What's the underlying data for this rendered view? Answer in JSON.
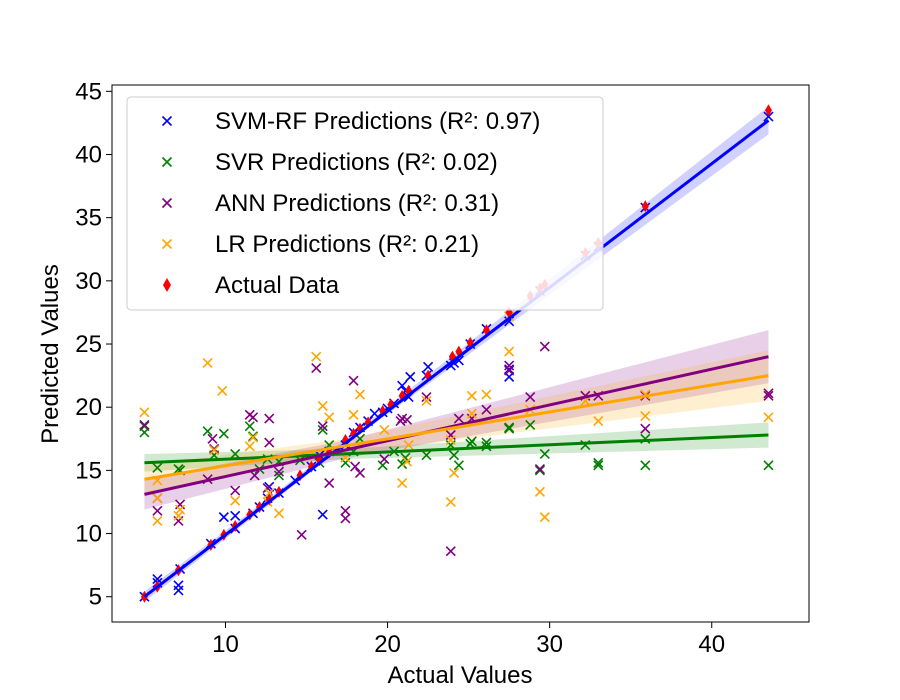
{
  "chart_data": {
    "type": "scatter",
    "title": "",
    "xlabel": "Actual Values",
    "ylabel": "Predicted Values",
    "xlim": [
      3,
      46
    ],
    "ylim": [
      3,
      45.5
    ],
    "xticks": [
      10,
      20,
      30,
      40
    ],
    "yticks": [
      5,
      10,
      15,
      20,
      25,
      30,
      35,
      40,
      45
    ],
    "grid": false,
    "legend_position": "top-left",
    "series": [
      {
        "name": "SVM-RF Predictions (R²: 0.97)",
        "marker": "x",
        "color": "#0000ff",
        "points": [
          [
            5,
            5
          ],
          [
            5.8,
            6.4
          ],
          [
            5.8,
            6.1
          ],
          [
            7.1,
            5.5
          ],
          [
            7.1,
            5.9
          ],
          [
            7.2,
            7.2
          ],
          [
            9.1,
            9.2
          ],
          [
            9.9,
            11.3
          ],
          [
            10.6,
            10.4
          ],
          [
            10.6,
            11.4
          ],
          [
            11.7,
            11.6
          ],
          [
            12.1,
            12.1
          ],
          [
            12.6,
            12.8
          ],
          [
            12.7,
            13.7
          ],
          [
            13.3,
            13.2
          ],
          [
            14.3,
            14.2
          ],
          [
            15.3,
            15.3
          ],
          [
            15.8,
            16.2
          ],
          [
            16.0,
            11.5
          ],
          [
            16.4,
            16.5
          ],
          [
            17.4,
            17.0
          ],
          [
            17.9,
            18.0
          ],
          [
            18.3,
            18.4
          ],
          [
            18.8,
            18.9
          ],
          [
            19.2,
            19.5
          ],
          [
            19.7,
            19.6
          ],
          [
            20.0,
            19.9
          ],
          [
            20.4,
            20.3
          ],
          [
            20.9,
            21.7
          ],
          [
            21.1,
            21.3
          ],
          [
            21.3,
            20.8
          ],
          [
            21.4,
            22.4
          ],
          [
            22.5,
            23.2
          ],
          [
            22.4,
            22.5
          ],
          [
            23.9,
            23.3
          ],
          [
            24.1,
            23.5
          ],
          [
            24.4,
            23.7
          ],
          [
            25.1,
            25.0
          ],
          [
            26.1,
            26.2
          ],
          [
            27.5,
            23.0
          ],
          [
            27.5,
            22.4
          ],
          [
            27.5,
            26.8
          ],
          [
            29.4,
            29.2
          ],
          [
            32.2,
            32.0
          ],
          [
            33.0,
            32.7
          ],
          [
            35.9,
            35.8
          ],
          [
            43.5,
            43.0
          ]
        ]
      },
      {
        "name": "SVR Predictions (R²: 0.02)",
        "marker": "x",
        "color": "#008000",
        "points": [
          [
            5,
            18.0
          ],
          [
            5,
            18.5
          ],
          [
            5.8,
            15.2
          ],
          [
            7.1,
            15.1
          ],
          [
            7.2,
            15.0
          ],
          [
            8.9,
            18.1
          ],
          [
            9.3,
            16.2
          ],
          [
            9.9,
            17.9
          ],
          [
            10.6,
            16.3
          ],
          [
            11.5,
            18.5
          ],
          [
            11.7,
            17.7
          ],
          [
            12.1,
            15.1
          ],
          [
            12.6,
            15.9
          ],
          [
            13.3,
            15.7
          ],
          [
            13.3,
            14.6
          ],
          [
            14.6,
            15.8
          ],
          [
            15.8,
            15.6
          ],
          [
            16.0,
            18.2
          ],
          [
            16.4,
            17.0
          ],
          [
            17.4,
            15.6
          ],
          [
            17.9,
            16.5
          ],
          [
            18.3,
            17.5
          ],
          [
            19.7,
            15.4
          ],
          [
            20.4,
            16.5
          ],
          [
            20.9,
            15.5
          ],
          [
            21.1,
            16.0
          ],
          [
            22.4,
            16.2
          ],
          [
            23.9,
            17.0
          ],
          [
            24.1,
            16.2
          ],
          [
            24.4,
            15.4
          ],
          [
            25.1,
            17.1
          ],
          [
            25.2,
            17.3
          ],
          [
            26.1,
            17.2
          ],
          [
            26.1,
            16.9
          ],
          [
            27.5,
            18.4
          ],
          [
            27.5,
            18.3
          ],
          [
            28.8,
            18.6
          ],
          [
            29.4,
            15.0
          ],
          [
            29.7,
            16.3
          ],
          [
            32.2,
            17.0
          ],
          [
            33.0,
            15.6
          ],
          [
            33.0,
            15.4
          ],
          [
            35.9,
            15.4
          ],
          [
            35.9,
            17.5
          ],
          [
            43.5,
            15.4
          ]
        ]
      },
      {
        "name": "ANN Predictions (R²: 0.31)",
        "marker": "x",
        "color": "#800080",
        "points": [
          [
            5,
            18.6
          ],
          [
            5.8,
            12.8
          ],
          [
            5.8,
            11.8
          ],
          [
            7.1,
            11.0
          ],
          [
            7.2,
            12.3
          ],
          [
            8.9,
            14.3
          ],
          [
            9.2,
            17.5
          ],
          [
            9.3,
            16.7
          ],
          [
            10.6,
            13.4
          ],
          [
            11.5,
            19.4
          ],
          [
            11.7,
            19.2
          ],
          [
            11.8,
            14.6
          ],
          [
            12.6,
            13.6
          ],
          [
            12.7,
            17.2
          ],
          [
            12.7,
            19.1
          ],
          [
            13.3,
            14.9
          ],
          [
            14.7,
            9.9
          ],
          [
            15.6,
            23.1
          ],
          [
            16.0,
            18.5
          ],
          [
            16.4,
            14.0
          ],
          [
            17.4,
            11.8
          ],
          [
            17.4,
            11.2
          ],
          [
            17.9,
            22.1
          ],
          [
            18.0,
            15.3
          ],
          [
            18.3,
            14.8
          ],
          [
            19.8,
            15.9
          ],
          [
            20.8,
            18.9
          ],
          [
            20.9,
            19.1
          ],
          [
            21.2,
            19.0
          ],
          [
            22.4,
            20.8
          ],
          [
            23.9,
            8.6
          ],
          [
            23.9,
            17.8
          ],
          [
            24.4,
            19.1
          ],
          [
            25.2,
            19.1
          ],
          [
            26.1,
            19.8
          ],
          [
            27.5,
            23.3
          ],
          [
            27.5,
            22.9
          ],
          [
            28.8,
            20.8
          ],
          [
            29.4,
            15.1
          ],
          [
            29.7,
            24.8
          ],
          [
            32.2,
            20.9
          ],
          [
            33.0,
            20.9
          ],
          [
            35.9,
            20.9
          ],
          [
            35.9,
            18.3
          ],
          [
            43.5,
            20.9
          ],
          [
            43.5,
            21.1
          ]
        ]
      },
      {
        "name": "LR Predictions (R²: 0.21)",
        "marker": "x",
        "color": "#ffa500",
        "points": [
          [
            5,
            19.6
          ],
          [
            5.8,
            11.0
          ],
          [
            5.8,
            12.8
          ],
          [
            5.8,
            14.2
          ],
          [
            7.1,
            11.4
          ],
          [
            7.2,
            11.9
          ],
          [
            8.9,
            23.5
          ],
          [
            9.3,
            16.6
          ],
          [
            9.8,
            21.3
          ],
          [
            10.6,
            12.6
          ],
          [
            11.5,
            16.9
          ],
          [
            11.7,
            17.6
          ],
          [
            12.6,
            12.5
          ],
          [
            12.7,
            13.2
          ],
          [
            13.3,
            11.6
          ],
          [
            15.6,
            24.0
          ],
          [
            16.0,
            20.1
          ],
          [
            16.4,
            19.2
          ],
          [
            17.4,
            16.0
          ],
          [
            17.9,
            19.4
          ],
          [
            18.3,
            21.0
          ],
          [
            19.8,
            18.2
          ],
          [
            20.9,
            14.0
          ],
          [
            21.2,
            15.7
          ],
          [
            21.3,
            17.0
          ],
          [
            22.4,
            20.5
          ],
          [
            23.9,
            12.5
          ],
          [
            23.9,
            17.4
          ],
          [
            24.1,
            14.8
          ],
          [
            25.2,
            19.5
          ],
          [
            25.2,
            20.9
          ],
          [
            26.1,
            21.0
          ],
          [
            27.5,
            24.4
          ],
          [
            27.5,
            27.2
          ],
          [
            28.8,
            19.8
          ],
          [
            29.4,
            13.3
          ],
          [
            29.7,
            11.3
          ],
          [
            32.2,
            20.5
          ],
          [
            33.0,
            18.9
          ],
          [
            35.9,
            21.0
          ],
          [
            35.9,
            19.3
          ],
          [
            43.5,
            19.2
          ]
        ]
      },
      {
        "name": "Actual Data",
        "marker": "diamond",
        "color": "#ff0000",
        "points": [
          [
            5,
            5
          ],
          [
            5.8,
            5.8
          ],
          [
            7.1,
            7.1
          ],
          [
            9.1,
            9.1
          ],
          [
            9.9,
            9.9
          ],
          [
            10.6,
            10.6
          ],
          [
            11.5,
            11.5
          ],
          [
            12.1,
            12.1
          ],
          [
            12.7,
            12.7
          ],
          [
            13.3,
            13.3
          ],
          [
            14.6,
            14.6
          ],
          [
            15.3,
            15.3
          ],
          [
            15.8,
            15.8
          ],
          [
            16.4,
            16.4
          ],
          [
            17.4,
            17.4
          ],
          [
            17.9,
            17.9
          ],
          [
            18.3,
            18.3
          ],
          [
            18.8,
            18.8
          ],
          [
            19.7,
            19.7
          ],
          [
            20.2,
            20.2
          ],
          [
            20.9,
            20.9
          ],
          [
            21.3,
            21.3
          ],
          [
            22.5,
            22.5
          ],
          [
            24.0,
            24.0
          ],
          [
            24.4,
            24.4
          ],
          [
            25.1,
            25.1
          ],
          [
            26.1,
            26.1
          ],
          [
            27.5,
            27.5
          ],
          [
            28.8,
            28.8
          ],
          [
            29.4,
            29.4
          ],
          [
            29.7,
            29.7
          ],
          [
            32.2,
            32.2
          ],
          [
            33.0,
            33.0
          ],
          [
            35.9,
            35.9
          ],
          [
            43.5,
            43.5
          ]
        ]
      }
    ],
    "fit_lines": [
      {
        "series": "SVM-RF Predictions (R²: 0.97)",
        "color": "#0000ff",
        "x": [
          5,
          43.5
        ],
        "y": [
          5.0,
          42.7
        ],
        "band": [
          [
            5,
            4.6,
            5.4
          ],
          [
            17.5,
            17.1,
            17.5
          ],
          [
            43.5,
            41.6,
            43.8
          ]
        ]
      },
      {
        "series": "SVR Predictions (R²: 0.02)",
        "color": "#008000",
        "x": [
          5,
          43.5
        ],
        "y": [
          15.6,
          17.8
        ],
        "band": [
          [
            5,
            14.9,
            16.3
          ],
          [
            17.5,
            15.9,
            16.7
          ],
          [
            43.5,
            16.8,
            18.8
          ]
        ]
      },
      {
        "series": "ANN Predictions (R²: 0.31)",
        "color": "#800080",
        "x": [
          5,
          43.5
        ],
        "y": [
          13.1,
          24.0
        ],
        "band": [
          [
            5,
            11.9,
            14.3
          ],
          [
            17.5,
            16.0,
            17.4
          ],
          [
            43.5,
            21.9,
            26.1
          ]
        ]
      },
      {
        "series": "LR Predictions (R²: 0.21)",
        "color": "#ffa500",
        "x": [
          5,
          43.5
        ],
        "y": [
          14.3,
          22.5
        ],
        "band": [
          [
            5,
            13.2,
            15.4
          ],
          [
            17.5,
            16.3,
            17.5
          ],
          [
            43.5,
            20.5,
            24.5
          ]
        ]
      }
    ]
  }
}
